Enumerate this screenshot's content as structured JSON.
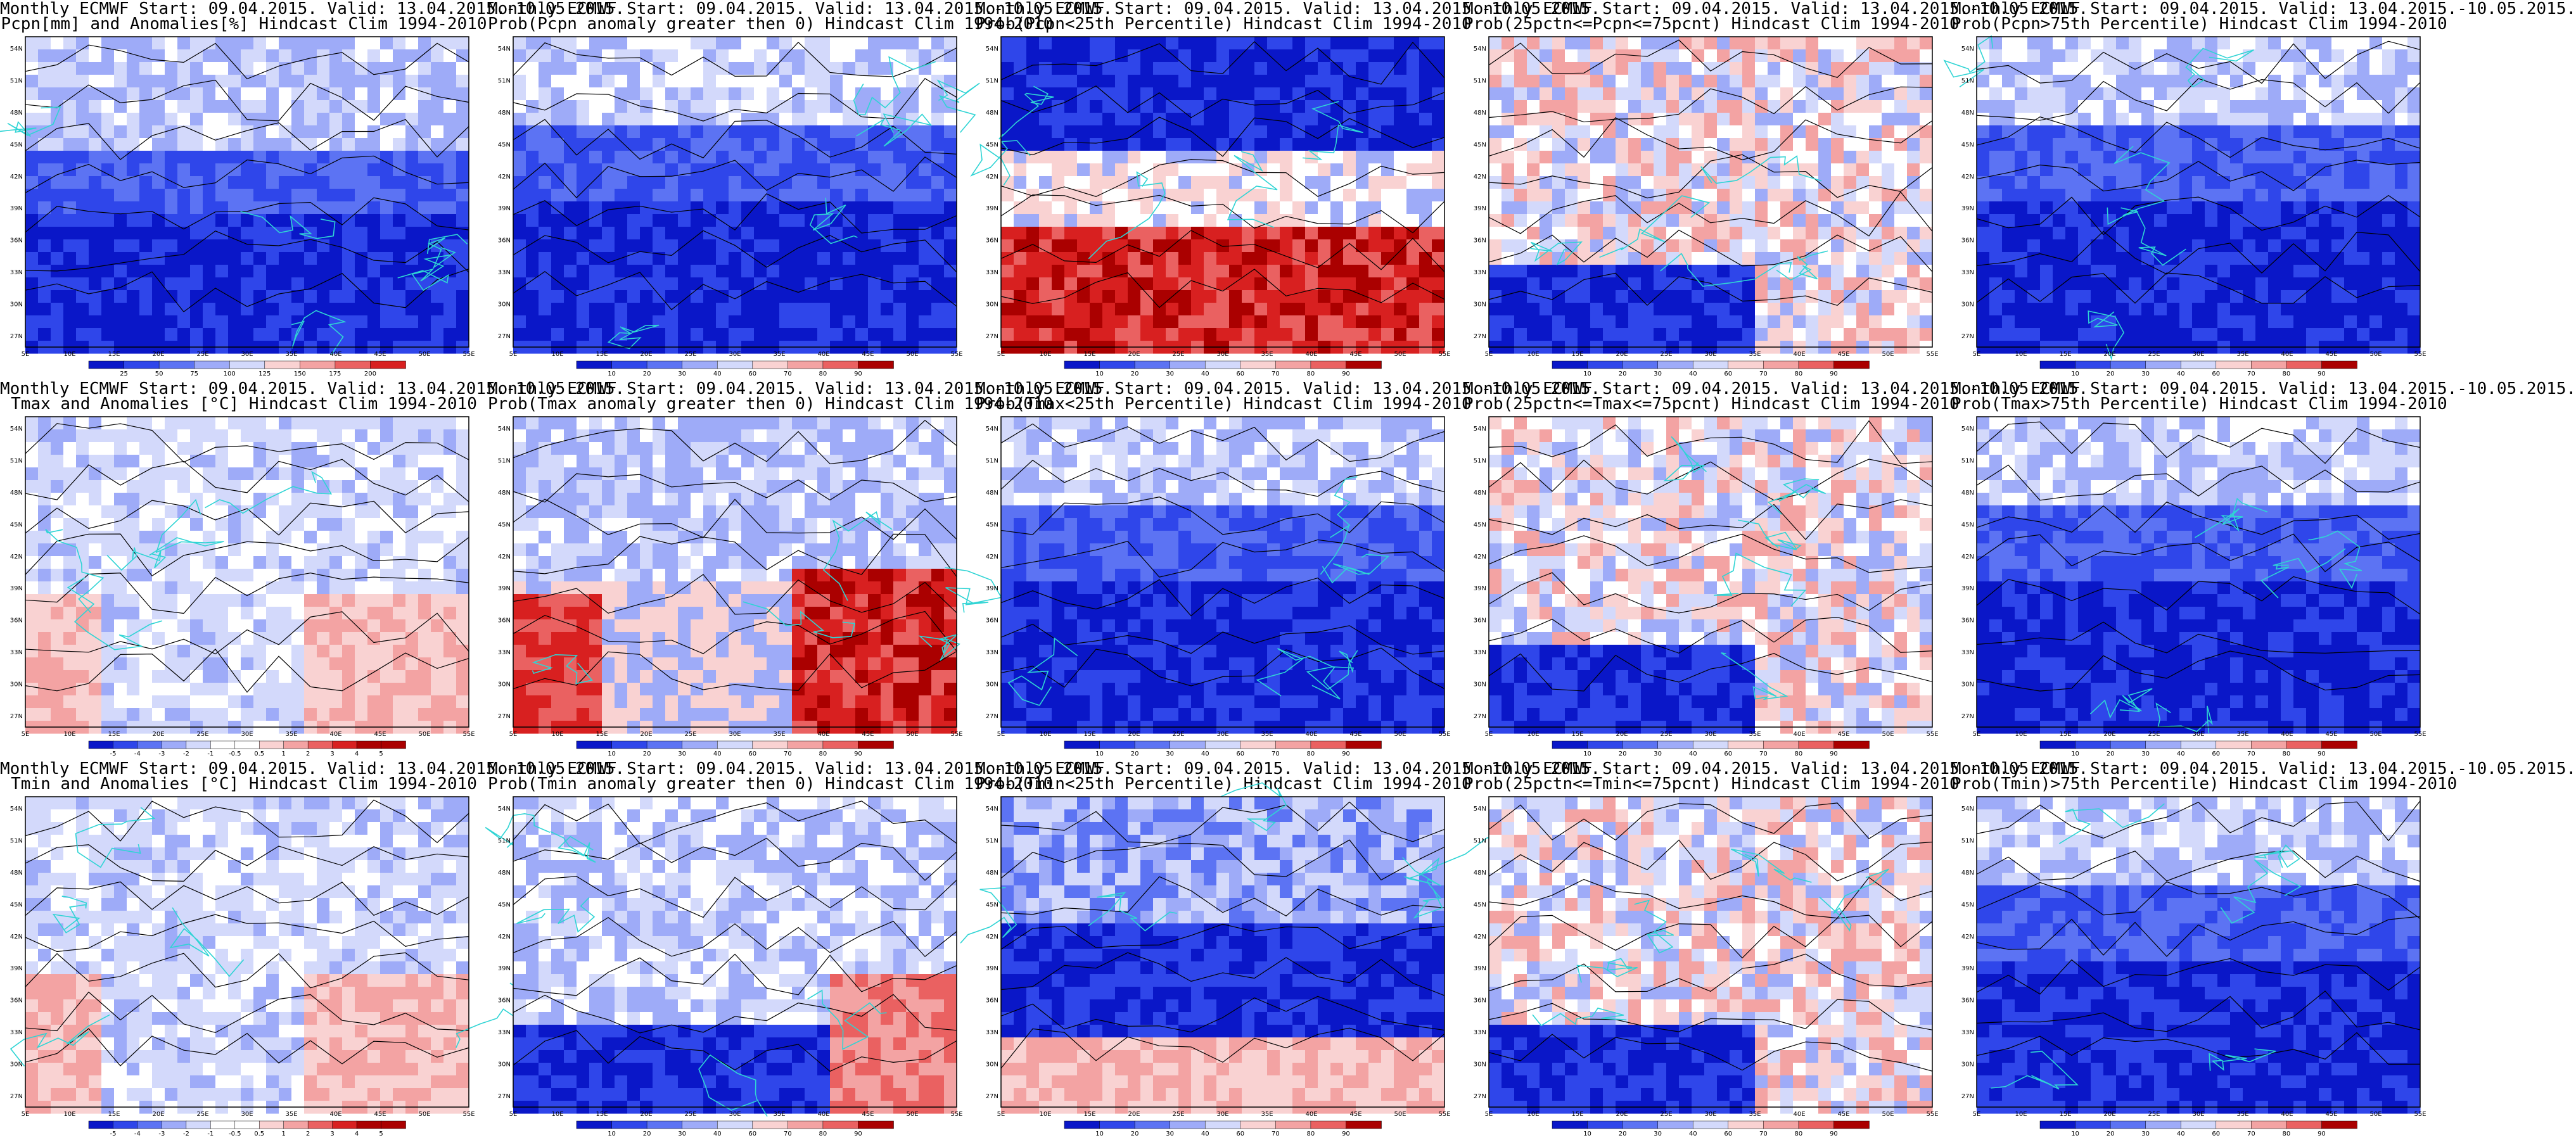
{
  "colors": {
    "deep_blue": "#0a17c8",
    "blue": "#2f46ea",
    "mid_blue": "#5c73f3",
    "light_blue": "#9eabf8",
    "pale_blue": "#d3d9fb",
    "white": "#ffffff",
    "pale_red": "#f9d2d2",
    "light_red": "#f3a3a3",
    "red": "#ea6161",
    "deep_red": "#d82020",
    "dark_red": "#aa0000",
    "coast": "#2fd4d4",
    "contour": "#000000"
  },
  "lat_ticks": [
    "54N",
    "51N",
    "48N",
    "45N",
    "42N",
    "39N",
    "36N",
    "33N",
    "30N",
    "27N"
  ],
  "lon_ticks": [
    "5E",
    "10E",
    "15E",
    "20E",
    "25E",
    "30E",
    "35E",
    "40E",
    "45E",
    "50E",
    "55E"
  ],
  "scales": {
    "pcpn": [
      "25",
      "50",
      "75",
      "100",
      "125",
      "150",
      "175",
      "200"
    ],
    "prob": [
      "10",
      "20",
      "30",
      "40",
      "60",
      "70",
      "80",
      "90"
    ],
    "anom": [
      "-5",
      "-4",
      "-3",
      "-2",
      "-1",
      "-0.5",
      "0.5",
      "1",
      "2",
      "3",
      "4",
      "5"
    ]
  },
  "panels": [
    {
      "line1": "Monthly ECMWF Start: 09.04.2015. Valid: 13.04.2015.-10.05.2015.",
      "line2": "Pcpn[mm] and Anomalies[%] Hindcast Clim 1994-2010",
      "scale": "pcpn",
      "pattern": "precip_anom"
    },
    {
      "line1": "Monthly ECMWF Start: 09.04.2015. Valid: 13.04.2015.-10.05.2015.",
      "line2": "Prob(Pcpn anomaly greater then 0) Hindcast Clim 1994-2010",
      "scale": "prob",
      "pattern": "blue_mostly"
    },
    {
      "line1": "Monthly ECMWF Start: 09.04.2015. Valid: 13.04.2015.-10.05.2015.",
      "line2": "Prob(Pcpn<25th Percentile) Hindcast Clim 1994-2010",
      "scale": "prob",
      "pattern": "red_south"
    },
    {
      "line1": "Monthly ECMWF Start: 09.04.2015. Valid: 13.04.2015.-10.05.2015.",
      "line2": "Prob(25pctn<=Pcpn<=75pcnt) Hindcast Clim 1994-2010",
      "scale": "prob",
      "pattern": "mixed_pale"
    },
    {
      "line1": "Monthly ECMWF Start: 09.04.2015. Valid: 13.04.2015.-10.05.2015.",
      "line2": "Prob(Pcpn>75th Percentile) Hindcast Clim 1994-2010",
      "scale": "prob",
      "pattern": "blue_mostly"
    },
    {
      "line1": "Monthly ECMWF Start: 09.04.2015. Valid: 13.04.2015.-10.05.2015.",
      "line2": "Tmax and Anomalies [°C] Hindcast Clim 1994-2010",
      "scale": "anom",
      "pattern": "pale_anom"
    },
    {
      "line1": "Monthly ECMWF Start: 09.04.2015. Valid: 13.04.2015.-10.05.2015.",
      "line2": "Prob(Tmax anomaly greater then 0) Hindcast Clim 1994-2010",
      "scale": "prob",
      "pattern": "red_southeast"
    },
    {
      "line1": "Monthly ECMWF Start: 09.04.2015. Valid: 13.04.2015.-10.05.2015.",
      "line2": "Prob(Tmax<25th Percentile) Hindcast Clim 1994-2010",
      "scale": "prob",
      "pattern": "blue_mostly"
    },
    {
      "line1": "Monthly ECMWF Start: 09.04.2015. Valid: 13.04.2015.-10.05.2015.",
      "line2": "Prob(25pctn<=Tmax<=75pcnt) Hindcast Clim 1994-2010",
      "scale": "prob",
      "pattern": "mixed_pale"
    },
    {
      "line1": "Monthly ECMWF Start: 09.04.2015. Valid: 13.04.2015.-10.05.2015.",
      "line2": "Prob(Tmax>75th Percentile) Hindcast Clim 1994-2010",
      "scale": "prob",
      "pattern": "blue_mostly"
    },
    {
      "line1": "Monthly ECMWF Start: 09.04.2015. Valid: 13.04.2015.-10.05.2015.",
      "line2": "Tmin and Anomalies [°C] Hindcast Clim 1994-2010",
      "scale": "anom",
      "pattern": "pale_anom"
    },
    {
      "line1": "Monthly ECMWF Start: 09.04.2015. Valid: 13.04.2015.-10.05.2015.",
      "line2": "Prob(Tmin anomaly greater then 0) Hindcast Clim 1994-2010",
      "scale": "prob",
      "pattern": "mixed_blue"
    },
    {
      "line1": "Monthly ECMWF Start: 09.04.2015. Valid: 13.04.2015.-10.05.2015.",
      "line2": "Prob(Tmin<25th Percentile) Hindcast Clim 1994-2010",
      "scale": "prob",
      "pattern": "blue_south_red"
    },
    {
      "line1": "Monthly ECMWF Start: 09.04.2015. Valid: 13.04.2015.-10.05.2015.",
      "line2": "Prob(25pctn<=Tmin<=75pcnt) Hindcast Clim 1994-2010",
      "scale": "prob",
      "pattern": "mixed_pale"
    },
    {
      "line1": "Monthly ECMWF Start: 09.04.2015. Valid: 13.04.2015.-10.05.2015.",
      "line2": "Prob(Tmin)>75th Percentile) Hindcast Clim 1994-2010",
      "scale": "prob",
      "pattern": "blue_mostly"
    }
  ]
}
